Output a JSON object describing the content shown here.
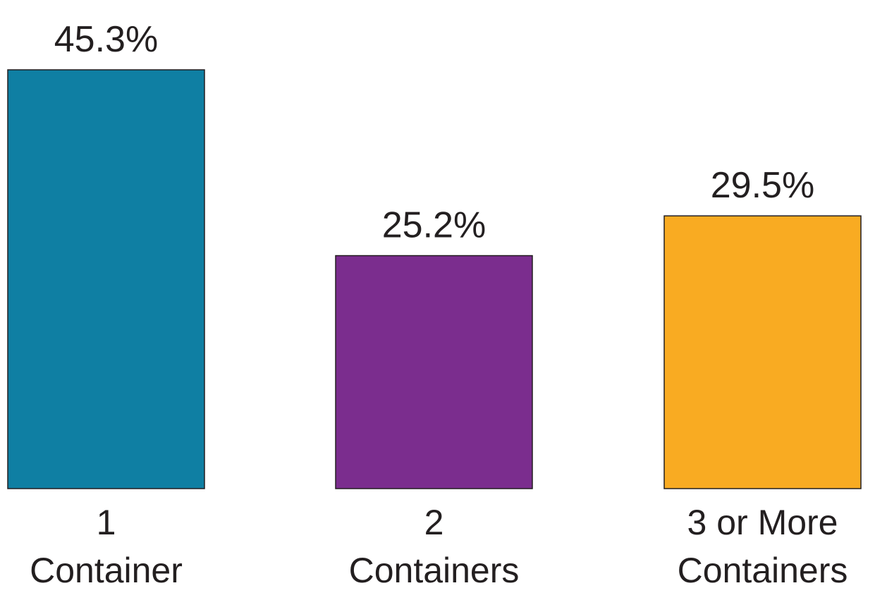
{
  "chart_data": {
    "type": "bar",
    "categories": [
      [
        "1",
        "Container"
      ],
      [
        "2",
        "Containers"
      ],
      [
        "3 or More",
        "Containers"
      ]
    ],
    "values": [
      45.3,
      25.2,
      29.5
    ],
    "value_labels": [
      "45.3%",
      "25.2%",
      "29.5%"
    ],
    "colors": [
      "#0f7fa3",
      "#7b2d8e",
      "#f9ab22"
    ],
    "ylim": [
      0,
      45.3
    ],
    "grid": false,
    "legend": "none",
    "title": "",
    "xlabel": "",
    "ylabel": ""
  }
}
